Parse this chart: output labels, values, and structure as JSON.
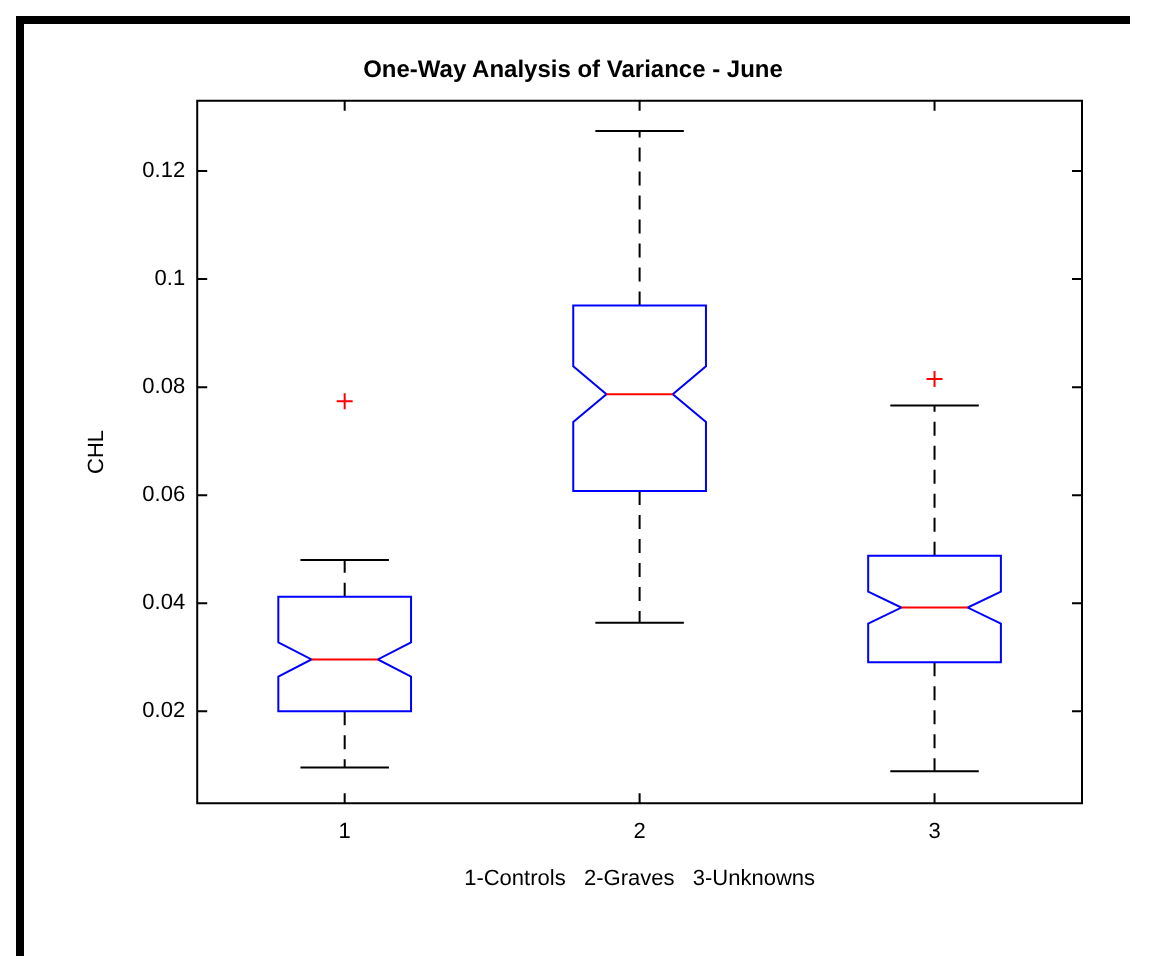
{
  "chart_data": {
    "type": "box",
    "title": "One-Way Analysis of Variance - June",
    "xlabel": "1-Controls   2-Graves   3-Unknowns",
    "ylabel": "CHL",
    "categories": [
      "1",
      "2",
      "3"
    ],
    "boxes": [
      {
        "low": 0.0096,
        "q1": 0.02,
        "median": 0.0296,
        "q3": 0.0412,
        "high": 0.048,
        "outliers": [
          0.0774
        ]
      },
      {
        "low": 0.0364,
        "q1": 0.0608,
        "median": 0.0787,
        "q3": 0.0951,
        "high": 0.1274
      },
      {
        "low": 0.0089,
        "q1": 0.0291,
        "median": 0.0392,
        "q3": 0.0488,
        "high": 0.0766,
        "outliers": [
          0.0815
        ]
      }
    ],
    "ylim": [
      0.003,
      0.133
    ],
    "yticks": [
      0.02,
      0.04,
      0.06,
      0.08,
      0.1,
      0.12
    ],
    "marker": "cross"
  }
}
